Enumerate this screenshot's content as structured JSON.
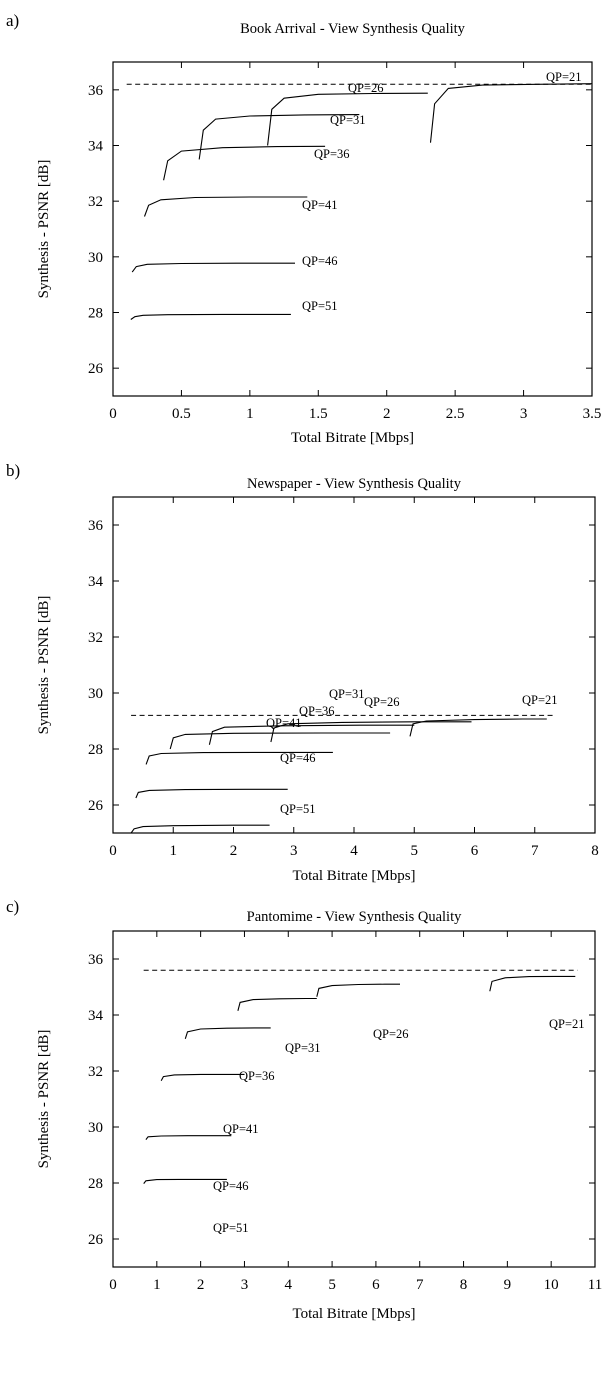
{
  "chart_data": [
    {
      "type": "line",
      "panel_label": "a)",
      "title": "Book Arrival - View Synthesis Quality",
      "xlabel": "Total Bitrate [Mbps]",
      "ylabel": "Synthesis - PSNR [dB]",
      "xlim": [
        0,
        3.5
      ],
      "ylim": [
        25,
        37
      ],
      "xticks": [
        "0",
        "0.5",
        "1",
        "1.5",
        "2",
        "2.5",
        "3",
        "3.5"
      ],
      "yticks": [
        "26",
        "28",
        "30",
        "32",
        "34",
        "36"
      ],
      "grid": false,
      "reference_line": {
        "style": "dashed",
        "x": [
          0.1,
          3.5
        ],
        "y": 36.2
      },
      "series": [
        {
          "name": "QP=51",
          "x": [
            0.13,
            0.16,
            0.22,
            0.4,
            0.8,
            1.3
          ],
          "y": [
            27.75,
            27.85,
            27.9,
            27.92,
            27.93,
            27.93
          ]
        },
        {
          "name": "QP=46",
          "x": [
            0.14,
            0.17,
            0.25,
            0.5,
            0.9,
            1.33
          ],
          "y": [
            29.45,
            29.65,
            29.73,
            29.76,
            29.77,
            29.77
          ]
        },
        {
          "name": "QP=41",
          "x": [
            0.23,
            0.26,
            0.35,
            0.6,
            1.0,
            1.42
          ],
          "y": [
            31.45,
            31.85,
            32.05,
            32.13,
            32.15,
            32.15
          ]
        },
        {
          "name": "QP=36",
          "x": [
            0.37,
            0.4,
            0.5,
            0.8,
            1.2,
            1.55
          ],
          "y": [
            32.75,
            33.45,
            33.8,
            33.92,
            33.96,
            33.97
          ]
        },
        {
          "name": "QP=31",
          "x": [
            0.63,
            0.66,
            0.75,
            1.0,
            1.4,
            1.8
          ],
          "y": [
            33.5,
            34.55,
            34.95,
            35.06,
            35.1,
            35.11
          ]
        },
        {
          "name": "QP=26",
          "x": [
            1.13,
            1.16,
            1.25,
            1.5,
            1.9,
            2.3
          ],
          "y": [
            34.0,
            35.3,
            35.7,
            35.84,
            35.87,
            35.88
          ]
        },
        {
          "name": "QP=21",
          "x": [
            2.32,
            2.35,
            2.45,
            2.7,
            3.1,
            3.5
          ],
          "y": [
            34.1,
            35.5,
            36.05,
            36.17,
            36.2,
            36.22
          ]
        }
      ]
    },
    {
      "type": "line",
      "panel_label": "b)",
      "title": "Newspaper - View Synthesis Quality",
      "xlabel": "Total Bitrate [Mbps]",
      "ylabel": "Synthesis - PSNR [dB]",
      "xlim": [
        0,
        8
      ],
      "ylim": [
        25,
        37
      ],
      "xticks": [
        "0",
        "1",
        "2",
        "3",
        "4",
        "5",
        "6",
        "7",
        "8"
      ],
      "yticks": [
        "26",
        "28",
        "30",
        "32",
        "34",
        "36"
      ],
      "grid": false,
      "reference_line": {
        "style": "dashed",
        "x": [
          0.3,
          7.3
        ],
        "y": 29.2
      },
      "series": [
        {
          "name": "QP=51",
          "x": [
            0.3,
            0.35,
            0.5,
            1.0,
            2.0,
            2.6
          ],
          "y": [
            25.0,
            25.15,
            25.23,
            25.26,
            25.28,
            25.28
          ]
        },
        {
          "name": "QP=46",
          "x": [
            0.38,
            0.42,
            0.6,
            1.2,
            2.2,
            2.9
          ],
          "y": [
            26.25,
            26.45,
            26.52,
            26.55,
            26.56,
            26.56
          ]
        },
        {
          "name": "QP=41",
          "x": [
            0.55,
            0.6,
            0.8,
            1.5,
            2.8,
            3.65
          ],
          "y": [
            27.45,
            27.75,
            27.84,
            27.87,
            27.88,
            27.88
          ]
        },
        {
          "name": "QP=36",
          "x": [
            0.95,
            1.0,
            1.2,
            2.0,
            3.5,
            4.6
          ],
          "y": [
            28.0,
            28.4,
            28.52,
            28.56,
            28.57,
            28.57
          ]
        },
        {
          "name": "QP=31",
          "x": [
            1.6,
            1.65,
            1.85,
            2.8,
            4.1,
            5.0
          ],
          "y": [
            28.15,
            28.62,
            28.78,
            28.83,
            28.85,
            28.85
          ]
        },
        {
          "name": "QP=26",
          "x": [
            2.62,
            2.67,
            2.9,
            3.8,
            5.0,
            5.95
          ],
          "y": [
            28.25,
            28.75,
            28.9,
            28.95,
            28.97,
            28.97
          ]
        },
        {
          "name": "QP=21",
          "x": [
            4.93,
            4.98,
            5.2,
            6.0,
            6.8,
            7.2
          ],
          "y": [
            28.45,
            28.9,
            29.0,
            29.05,
            29.07,
            29.07
          ]
        }
      ]
    },
    {
      "type": "line",
      "panel_label": "c)",
      "title": "Pantomime - View Synthesis Quality",
      "xlabel": "Total Bitrate [Mbps]",
      "ylabel": "Synthesis - PSNR [dB]",
      "xlim": [
        0,
        11
      ],
      "ylim": [
        25,
        37
      ],
      "xticks": [
        "0",
        "1",
        "2",
        "3",
        "4",
        "5",
        "6",
        "7",
        "8",
        "9",
        "10",
        "11"
      ],
      "yticks": [
        "26",
        "28",
        "30",
        "32",
        "34",
        "36"
      ],
      "grid": false,
      "reference_line": {
        "style": "dashed",
        "x": [
          0.7,
          10.6
        ],
        "y": 35.6
      },
      "series": [
        {
          "name": "QP=51",
          "x": [
            0.7,
            0.75,
            1.0,
            1.5,
            2.2,
            2.6
          ],
          "y": [
            27.98,
            28.08,
            28.12,
            28.13,
            28.13,
            28.13
          ]
        },
        {
          "name": "QP=46",
          "x": [
            0.75,
            0.8,
            1.1,
            1.7,
            2.3,
            2.7
          ],
          "y": [
            29.55,
            29.65,
            29.68,
            29.69,
            29.69,
            29.69
          ]
        },
        {
          "name": "QP=41",
          "x": [
            1.1,
            1.15,
            1.4,
            2.0,
            2.7,
            3.0
          ],
          "y": [
            31.65,
            31.8,
            31.86,
            31.88,
            31.88,
            31.88
          ]
        },
        {
          "name": "QP=36",
          "x": [
            1.65,
            1.7,
            2.0,
            2.6,
            3.3,
            3.6
          ],
          "y": [
            33.15,
            33.4,
            33.5,
            33.53,
            33.54,
            33.54
          ]
        },
        {
          "name": "QP=31",
          "x": [
            2.85,
            2.9,
            3.2,
            3.8,
            4.4,
            4.65
          ],
          "y": [
            34.15,
            34.45,
            34.55,
            34.58,
            34.59,
            34.59
          ]
        },
        {
          "name": "QP=26",
          "x": [
            4.65,
            4.7,
            5.0,
            5.6,
            6.2,
            6.55
          ],
          "y": [
            34.65,
            34.95,
            35.05,
            35.09,
            35.1,
            35.1
          ]
        },
        {
          "name": "QP=21",
          "x": [
            8.6,
            8.65,
            8.95,
            9.5,
            10.1,
            10.55
          ],
          "y": [
            34.85,
            35.2,
            35.33,
            35.37,
            35.38,
            35.38
          ]
        }
      ]
    }
  ]
}
